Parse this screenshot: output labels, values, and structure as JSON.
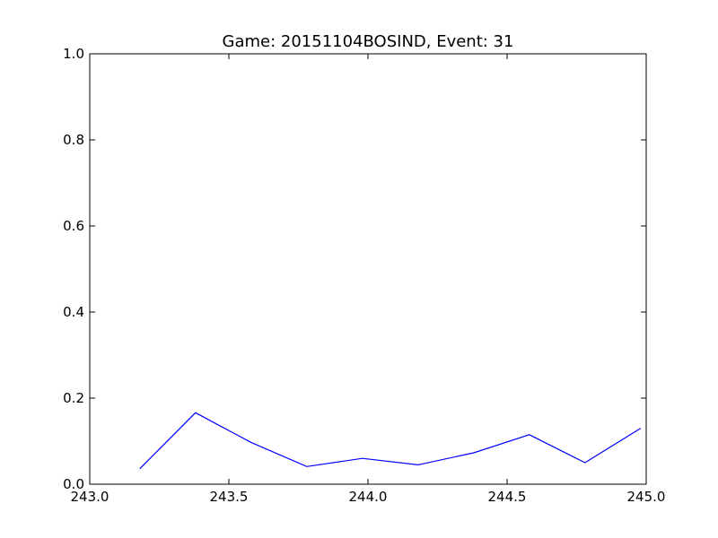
{
  "chart_data": {
    "type": "line",
    "title": "Game: 20151104BOSIND, Event: 31",
    "xlabel": "",
    "ylabel": "",
    "xlim": [
      243.0,
      245.0
    ],
    "ylim": [
      0.0,
      1.0
    ],
    "x_ticks": [
      "243.0",
      "243.5",
      "244.0",
      "244.5",
      "245.0"
    ],
    "y_ticks": [
      "0.0",
      "0.2",
      "0.4",
      "0.6",
      "0.8",
      "1.0"
    ],
    "grid": false,
    "series": [
      {
        "color": "#0000ff",
        "x": [
          243.18,
          243.38,
          243.58,
          243.78,
          243.98,
          244.18,
          244.38,
          244.58,
          244.78,
          244.98
        ],
        "y": [
          0.036,
          0.166,
          0.097,
          0.041,
          0.06,
          0.045,
          0.073,
          0.115,
          0.05,
          0.13
        ]
      }
    ]
  }
}
